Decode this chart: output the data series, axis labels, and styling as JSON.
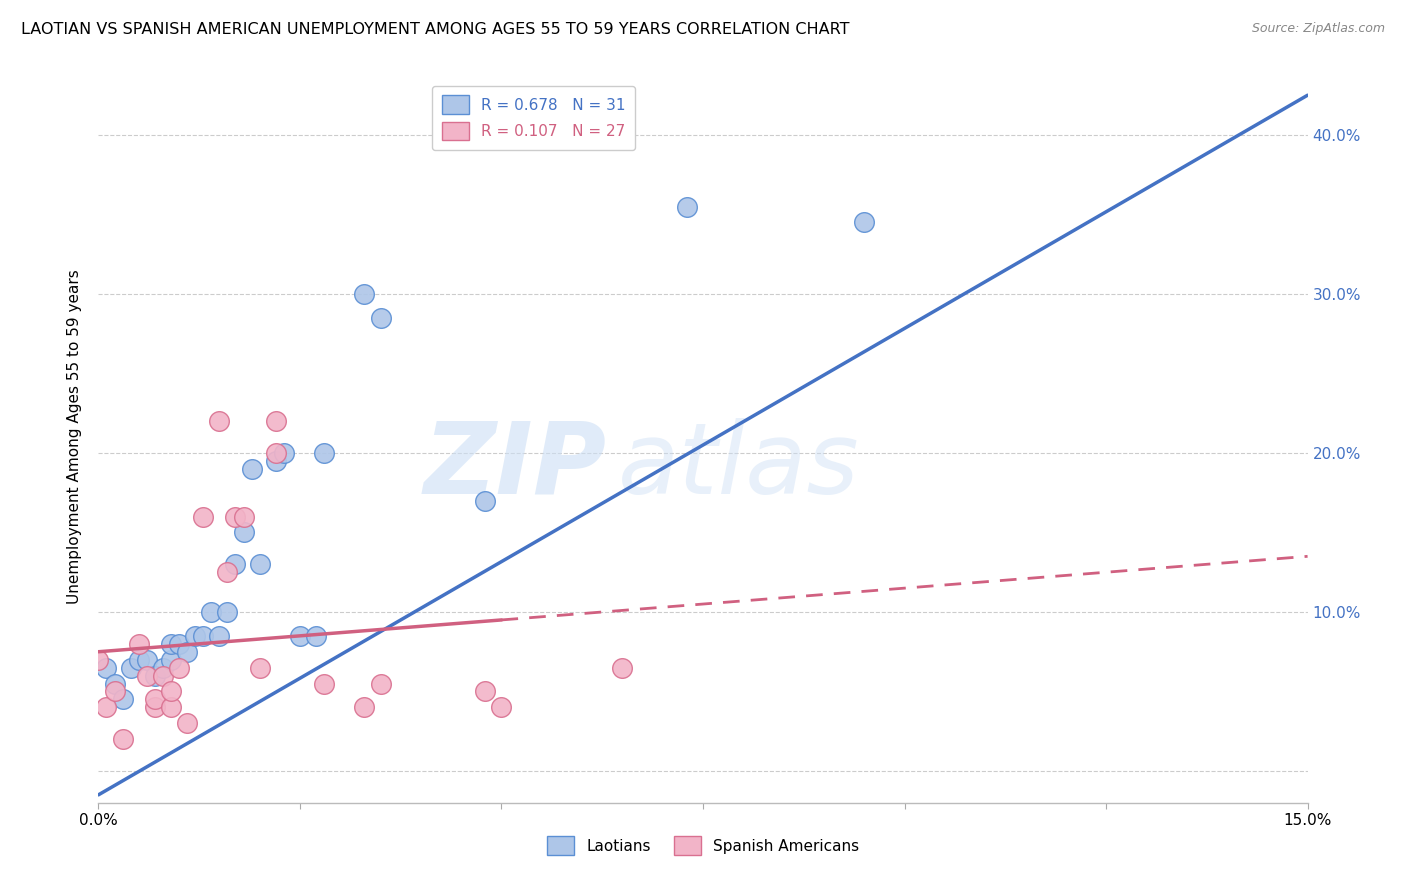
{
  "title": "LAOTIAN VS SPANISH AMERICAN UNEMPLOYMENT AMONG AGES 55 TO 59 YEARS CORRELATION CHART",
  "source": "Source: ZipAtlas.com",
  "xlabel": "",
  "ylabel": "Unemployment Among Ages 55 to 59 years",
  "xlim": [
    0.0,
    0.15
  ],
  "ylim": [
    -0.02,
    0.44
  ],
  "xticks": [
    0.0,
    0.025,
    0.05,
    0.075,
    0.1,
    0.125,
    0.15
  ],
  "xtick_labels": [
    "0.0%",
    "",
    "",
    "",
    "",
    "",
    "15.0%"
  ],
  "yticks": [
    0.0,
    0.1,
    0.2,
    0.3,
    0.4
  ],
  "ytick_right_labels": [
    "",
    "10.0%",
    "20.0%",
    "30.0%",
    "40.0%"
  ],
  "laotian_R": 0.678,
  "laotian_N": 31,
  "spanish_R": 0.107,
  "spanish_N": 27,
  "laotian_color": "#aec6e8",
  "laotian_edge_color": "#5b8fd4",
  "laotian_line_color": "#4472c4",
  "spanish_color": "#f2b4c8",
  "spanish_edge_color": "#d97090",
  "spanish_line_color": "#d06080",
  "watermark_zip": "ZIP",
  "watermark_atlas": "atlas",
  "laotian_x": [
    0.001,
    0.002,
    0.003,
    0.004,
    0.005,
    0.006,
    0.007,
    0.008,
    0.009,
    0.009,
    0.01,
    0.011,
    0.012,
    0.013,
    0.014,
    0.015,
    0.016,
    0.017,
    0.018,
    0.019,
    0.02,
    0.022,
    0.023,
    0.025,
    0.027,
    0.028,
    0.033,
    0.035,
    0.048,
    0.073,
    0.095
  ],
  "laotian_y": [
    0.065,
    0.055,
    0.045,
    0.065,
    0.07,
    0.07,
    0.06,
    0.065,
    0.07,
    0.08,
    0.08,
    0.075,
    0.085,
    0.085,
    0.1,
    0.085,
    0.1,
    0.13,
    0.15,
    0.19,
    0.13,
    0.195,
    0.2,
    0.085,
    0.085,
    0.2,
    0.3,
    0.285,
    0.17,
    0.355,
    0.345
  ],
  "spanish_x": [
    0.0,
    0.001,
    0.002,
    0.003,
    0.005,
    0.006,
    0.007,
    0.007,
    0.008,
    0.009,
    0.009,
    0.01,
    0.011,
    0.013,
    0.015,
    0.016,
    0.017,
    0.018,
    0.02,
    0.022,
    0.022,
    0.028,
    0.033,
    0.035,
    0.048,
    0.05,
    0.065
  ],
  "spanish_y": [
    0.07,
    0.04,
    0.05,
    0.02,
    0.08,
    0.06,
    0.04,
    0.045,
    0.06,
    0.04,
    0.05,
    0.065,
    0.03,
    0.16,
    0.22,
    0.125,
    0.16,
    0.16,
    0.065,
    0.22,
    0.2,
    0.055,
    0.04,
    0.055,
    0.05,
    0.04,
    0.065
  ],
  "lao_line_x": [
    0.0,
    0.15
  ],
  "lao_line_y": [
    -0.015,
    0.425
  ],
  "spa_line_x": [
    0.0,
    0.15
  ],
  "spa_line_y": [
    0.075,
    0.135
  ]
}
